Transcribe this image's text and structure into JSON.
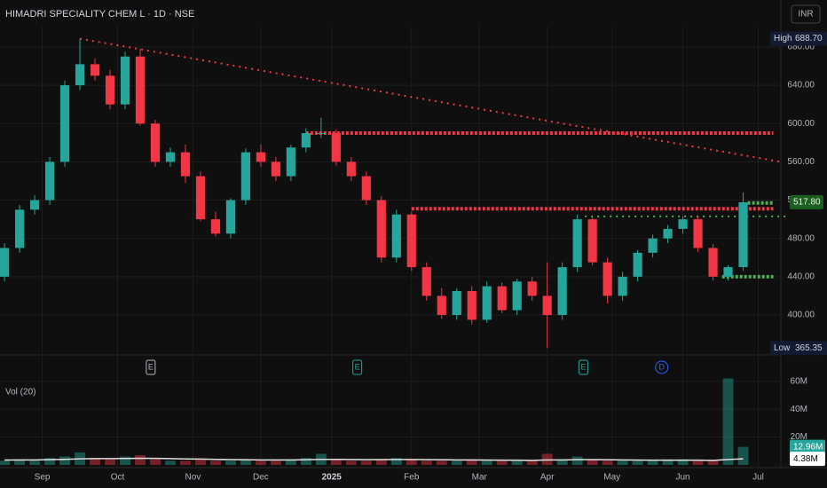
{
  "chart_data": {
    "type": "candlestick",
    "title": "HIMADRI SPECIALITY CHEM L · 1D · NSE",
    "currency": "INR",
    "up_color": "#26a69a",
    "down_color": "#f23645",
    "open": [
      440,
      470,
      510,
      520,
      560,
      640,
      662,
      650,
      620,
      670,
      600,
      560,
      570,
      545,
      500,
      485,
      520,
      570,
      560,
      545,
      575,
      590,
      590,
      560,
      545,
      520,
      460,
      505,
      450,
      420,
      400,
      425,
      395,
      430,
      405,
      435,
      420,
      400,
      450,
      500,
      455,
      420,
      440,
      465,
      480,
      490,
      500,
      470,
      440,
      450
    ],
    "high": [
      475,
      515,
      525,
      565,
      645,
      688.7,
      668,
      656,
      675,
      678,
      604,
      575,
      578,
      550,
      508,
      522,
      574,
      578,
      565,
      578,
      595,
      606,
      594,
      565,
      550,
      524,
      510,
      508,
      455,
      428,
      428,
      430,
      435,
      434,
      438,
      440,
      455,
      455,
      505,
      502,
      460,
      445,
      468,
      484,
      494,
      503,
      503,
      474,
      452,
      528
    ],
    "low": [
      435,
      465,
      505,
      515,
      555,
      635,
      645,
      615,
      615,
      598,
      555,
      555,
      538,
      498,
      482,
      480,
      515,
      555,
      540,
      540,
      570,
      585,
      556,
      540,
      515,
      455,
      455,
      446,
      415,
      396,
      395,
      390,
      392,
      402,
      400,
      415,
      365.35,
      395,
      445,
      452,
      412,
      415,
      435,
      460,
      475,
      485,
      466,
      436,
      436,
      446
    ],
    "close": [
      470,
      510,
      520,
      560,
      640,
      662,
      650,
      620,
      670,
      600,
      560,
      570,
      545,
      500,
      485,
      520,
      570,
      560,
      545,
      575,
      590,
      590,
      560,
      545,
      520,
      460,
      505,
      450,
      420,
      400,
      425,
      395,
      430,
      405,
      435,
      420,
      400,
      450,
      500,
      455,
      420,
      440,
      465,
      480,
      490,
      500,
      470,
      440,
      450,
      517.8
    ],
    "xlim": [
      -0.3,
      51.5
    ],
    "xticks": [
      {
        "value": 2.5,
        "label": "Sep"
      },
      {
        "value": 7.5,
        "label": "Oct"
      },
      {
        "value": 12.5,
        "label": "Nov"
      },
      {
        "value": 17,
        "label": "Dec"
      },
      {
        "value": 21.7,
        "label": "2025"
      },
      {
        "value": 27,
        "label": "Feb"
      },
      {
        "value": 31.5,
        "label": "Mar"
      },
      {
        "value": 36,
        "label": "Apr"
      },
      {
        "value": 40.3,
        "label": "May"
      },
      {
        "value": 45,
        "label": "Jun"
      },
      {
        "value": 50,
        "label": "Jul"
      }
    ],
    "ylim": [
      362,
      692
    ],
    "yticks": [
      {
        "value": 400,
        "label": "400.00"
      },
      {
        "value": 440,
        "label": "440.00"
      },
      {
        "value": 480,
        "label": "480.00"
      },
      {
        "value": 520,
        "label": "520.00"
      },
      {
        "value": 560,
        "label": "560.00"
      },
      {
        "value": 600,
        "label": "600.00"
      },
      {
        "value": 640,
        "label": "640.00"
      },
      {
        "value": 680,
        "label": "680.00"
      }
    ],
    "high_label": "High",
    "high_value": {
      "value": 688.7,
      "label": "688.70"
    },
    "low_label": "Low",
    "low_value": {
      "value": 365.35,
      "label": "365.35"
    },
    "last_price": {
      "value": 517.8,
      "label": "517.80"
    },
    "lines": [
      {
        "x": [
          5,
          51.5
        ],
        "y": [
          688.7,
          560
        ],
        "color": "#f23645",
        "style": "dotted"
      },
      {
        "x": [
          20,
          51
        ],
        "y": [
          590,
          590
        ],
        "color": "#f23645",
        "style": "band"
      },
      {
        "x": [
          27,
          51
        ],
        "y": [
          511,
          511
        ],
        "color": "#f23645",
        "style": "band"
      },
      {
        "x": [
          38.5,
          51.8
        ],
        "y": [
          503,
          503
        ],
        "color": "#4caf50",
        "style": "dotted"
      },
      {
        "x": [
          47.6,
          51
        ],
        "y": [
          440,
          440
        ],
        "color": "#4caf50",
        "style": "band"
      },
      {
        "x": [
          49.3,
          51
        ],
        "y": [
          517,
          517
        ],
        "color": "#4caf50",
        "style": "band"
      }
    ],
    "events": [
      {
        "x": 9.7,
        "label": "E"
      },
      {
        "x": 23.4,
        "label": "E"
      },
      {
        "x": 38.4,
        "label": "E"
      },
      {
        "x": 43.6,
        "label": "D"
      }
    ],
    "volume_title": "Vol (20)",
    "volume": [
      3,
      4,
      3,
      5,
      6,
      9,
      5,
      4,
      6,
      7,
      4,
      3,
      3,
      4,
      3,
      3,
      4,
      3,
      3,
      4,
      5,
      8,
      4,
      3,
      3,
      4,
      5,
      4,
      3,
      3,
      3,
      4,
      3,
      3,
      3,
      3,
      8,
      4,
      6,
      4,
      3,
      3,
      3,
      3,
      4,
      4,
      3,
      3,
      62,
      12.96
    ],
    "volume_value_label": "12.96M",
    "volume_ma": [
      3.5,
      3.6,
      3.6,
      3.8,
      4,
      4.4,
      4.5,
      4.5,
      4.6,
      4.8,
      4.7,
      4.5,
      4.3,
      4.2,
      4,
      3.8,
      3.7,
      3.6,
      3.6,
      3.6,
      3.7,
      4,
      4,
      3.9,
      3.8,
      3.8,
      3.9,
      3.9,
      3.8,
      3.7,
      3.6,
      3.6,
      3.5,
      3.4,
      3.4,
      3.3,
      3.6,
      3.6,
      3.8,
      3.8,
      3.7,
      3.6,
      3.5,
      3.4,
      3.4,
      3.4,
      3.4,
      3.3,
      3.9,
      4.38
    ],
    "volume_ma_label": "4.38M",
    "volume_ylim": [
      0,
      63
    ],
    "volume_yticks": [
      {
        "value": 20,
        "label": "20M"
      },
      {
        "value": 40,
        "label": "40M"
      },
      {
        "value": 60,
        "label": "60M"
      }
    ]
  }
}
